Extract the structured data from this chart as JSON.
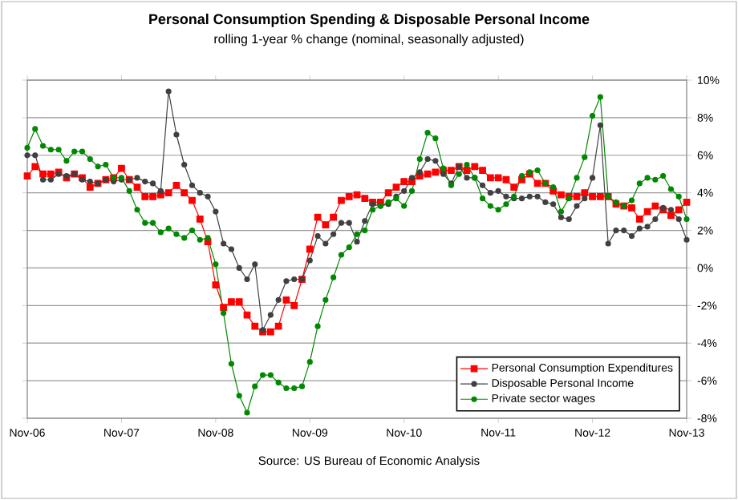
{
  "chart_data": {
    "type": "line",
    "title": "Personal Consumption Spending & Disposable Personal Income",
    "subtitle": "rolling 1-year % change (nominal, seasonally adjusted)",
    "annotations": [
      "Source: US Bureau of Economic Analysis"
    ],
    "x": [
      "2006-11",
      "2006-12",
      "2007-01",
      "2007-02",
      "2007-03",
      "2007-04",
      "2007-05",
      "2007-06",
      "2007-07",
      "2007-08",
      "2007-09",
      "2007-10",
      "2007-11",
      "2007-12",
      "2008-01",
      "2008-02",
      "2008-03",
      "2008-04",
      "2008-05",
      "2008-06",
      "2008-07",
      "2008-08",
      "2008-09",
      "2008-10",
      "2008-11",
      "2008-12",
      "2009-01",
      "2009-02",
      "2009-03",
      "2009-04",
      "2009-05",
      "2009-06",
      "2009-07",
      "2009-08",
      "2009-09",
      "2009-10",
      "2009-11",
      "2009-12",
      "2010-01",
      "2010-02",
      "2010-03",
      "2010-04",
      "2010-05",
      "2010-06",
      "2010-07",
      "2010-08",
      "2010-09",
      "2010-10",
      "2010-11",
      "2010-12",
      "2011-01",
      "2011-02",
      "2011-03",
      "2011-04",
      "2011-05",
      "2011-06",
      "2011-07",
      "2011-08",
      "2011-09",
      "2011-10",
      "2011-11",
      "2011-12",
      "2012-01",
      "2012-02",
      "2012-03",
      "2012-04",
      "2012-05",
      "2012-06",
      "2012-07",
      "2012-08",
      "2012-09",
      "2012-10",
      "2012-11",
      "2012-12",
      "2013-01",
      "2013-02",
      "2013-03",
      "2013-04",
      "2013-05",
      "2013-06",
      "2013-07",
      "2013-08",
      "2013-09",
      "2013-10",
      "2013-11"
    ],
    "xlim": [
      "2006-11",
      "2013-11"
    ],
    "xticks": [
      {
        "value": "2006-11",
        "label": "Nov-06"
      },
      {
        "value": "2007-11",
        "label": "Nov-07"
      },
      {
        "value": "2008-11",
        "label": "Nov-08"
      },
      {
        "value": "2009-11",
        "label": "Nov-09"
      },
      {
        "value": "2010-11",
        "label": "Nov-10"
      },
      {
        "value": "2011-11",
        "label": "Nov-11"
      },
      {
        "value": "2012-11",
        "label": "Nov-12"
      },
      {
        "value": "2013-11",
        "label": "Nov-13"
      }
    ],
    "ylim": [
      -8,
      10
    ],
    "yticks": [
      {
        "value": -8,
        "label": "-8%"
      },
      {
        "value": -6,
        "label": "-6%"
      },
      {
        "value": -4,
        "label": "-4%"
      },
      {
        "value": -2,
        "label": "-2%"
      },
      {
        "value": 0,
        "label": "0%"
      },
      {
        "value": 2,
        "label": "2%"
      },
      {
        "value": 4,
        "label": "4%"
      },
      {
        "value": 6,
        "label": "6%"
      },
      {
        "value": 8,
        "label": "8%"
      },
      {
        "value": 10,
        "label": "10%"
      }
    ],
    "grid": "y",
    "legend": "bottom right",
    "series": [
      {
        "name": "Personal Consumption Expenditures",
        "color": "#ff0000",
        "marker": "square",
        "values": [
          4.9,
          5.4,
          5.0,
          5.0,
          5.1,
          4.8,
          5.0,
          4.8,
          4.3,
          4.5,
          4.7,
          4.8,
          5.3,
          4.7,
          4.3,
          3.8,
          3.8,
          3.9,
          4.0,
          4.4,
          4.0,
          3.6,
          2.6,
          1.4,
          -0.9,
          -2.1,
          -1.8,
          -1.8,
          -2.5,
          -3.1,
          -3.4,
          -3.4,
          -3.1,
          -1.7,
          -2.0,
          -0.6,
          1.0,
          2.7,
          2.3,
          2.7,
          3.6,
          3.8,
          3.9,
          3.7,
          3.5,
          3.5,
          4.0,
          4.3,
          4.6,
          4.6,
          4.9,
          5.0,
          5.1,
          5.2,
          5.2,
          5.4,
          5.2,
          5.4,
          5.2,
          4.8,
          4.8,
          4.7,
          4.3,
          4.7,
          5.0,
          4.5,
          4.5,
          4.1,
          3.9,
          3.8,
          3.8,
          4.0,
          3.8,
          3.8,
          3.8,
          3.4,
          3.3,
          3.2,
          2.6,
          3.0,
          3.3,
          3.1,
          2.8,
          3.1,
          3.5
        ]
      },
      {
        "name": "Disposable Personal Income",
        "color": "#404040",
        "marker": "circle",
        "values": [
          6.0,
          6.0,
          4.7,
          4.7,
          5.0,
          4.9,
          5.0,
          4.7,
          4.6,
          4.5,
          4.7,
          4.6,
          4.7,
          4.7,
          4.8,
          4.6,
          4.5,
          4.1,
          9.4,
          7.1,
          5.5,
          4.4,
          4.0,
          3.8,
          3.0,
          1.3,
          1.0,
          0.0,
          -0.6,
          0.2,
          -3.3,
          -2.5,
          -1.7,
          -0.7,
          -0.6,
          -0.6,
          0.4,
          1.7,
          1.3,
          1.8,
          2.4,
          2.4,
          1.4,
          2.5,
          3.4,
          3.3,
          3.4,
          3.8,
          4.1,
          4.8,
          5.1,
          5.8,
          5.7,
          5.0,
          4.5,
          5.4,
          4.8,
          4.8,
          4.4,
          4.0,
          4.1,
          3.8,
          3.7,
          3.7,
          3.8,
          3.8,
          3.5,
          3.4,
          2.7,
          2.6,
          3.3,
          3.7,
          4.8,
          7.6,
          1.3,
          2.0,
          2.0,
          1.7,
          2.1,
          2.2,
          2.6,
          3.2,
          3.1,
          2.6,
          1.5
        ]
      },
      {
        "name": "Private sector wages",
        "color": "#008800",
        "marker": "circle",
        "values": [
          6.4,
          7.4,
          6.5,
          6.3,
          6.3,
          5.7,
          6.2,
          6.2,
          5.8,
          5.4,
          5.5,
          4.8,
          4.8,
          4.1,
          3.1,
          2.4,
          2.4,
          1.9,
          2.1,
          1.8,
          1.6,
          2.0,
          1.5,
          1.6,
          0.2,
          -2.4,
          -5.1,
          -6.8,
          -7.7,
          -6.3,
          -5.7,
          -5.7,
          -6.1,
          -6.4,
          -6.4,
          -6.3,
          -5.0,
          -3.1,
          -1.7,
          -0.5,
          0.7,
          1.1,
          1.8,
          2.0,
          3.1,
          3.3,
          3.5,
          3.7,
          3.3,
          4.1,
          5.8,
          7.2,
          6.9,
          5.3,
          4.4,
          5.0,
          5.5,
          4.8,
          3.7,
          3.3,
          3.1,
          3.4,
          3.8,
          4.9,
          5.1,
          5.2,
          4.5,
          4.3,
          3.0,
          3.7,
          4.8,
          5.9,
          8.1,
          9.1,
          3.8,
          3.5,
          3.3,
          3.6,
          4.5,
          4.8,
          4.7,
          4.9,
          4.2,
          3.8,
          2.6
        ]
      }
    ]
  }
}
